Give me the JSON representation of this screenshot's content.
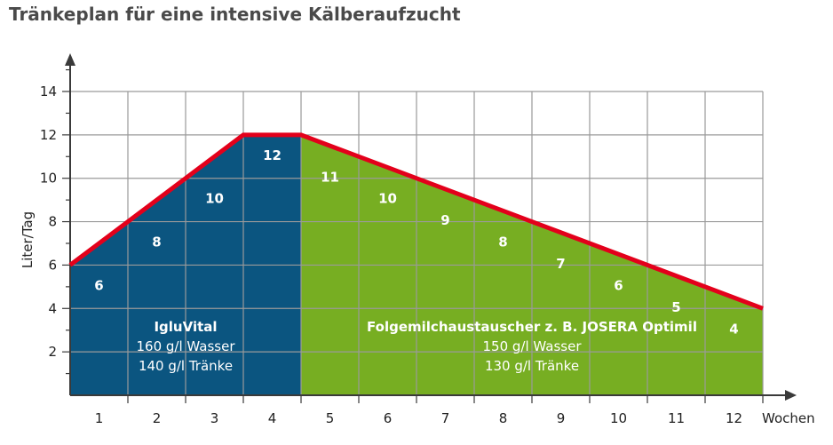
{
  "chart_data": {
    "type": "area",
    "title": "Tränkeplan für eine intensive Kälberaufzucht",
    "xlabel": "Wochen",
    "ylabel": "Liter/Tag",
    "xlim": [
      0,
      12
    ],
    "ylim": [
      0,
      14
    ],
    "x_ticks": [
      "1",
      "2",
      "3",
      "4",
      "5",
      "6",
      "7",
      "8",
      "9",
      "10",
      "11",
      "12"
    ],
    "y_ticks": [
      "2",
      "4",
      "6",
      "8",
      "10",
      "12",
      "14"
    ],
    "grid": true,
    "line": [
      [
        0,
        6
      ],
      [
        3,
        12
      ],
      [
        4,
        12
      ],
      [
        12,
        4
      ]
    ],
    "series": [
      {
        "color": "#0b5580",
        "x_range": [
          0,
          4
        ],
        "values": [
          6,
          8,
          10,
          12
        ],
        "label_lines": [
          "IgluVital",
          "160 g/l Wasser",
          "140 g/l Tränke"
        ]
      },
      {
        "color": "#77ae22",
        "x_range": [
          4,
          12
        ],
        "values": [
          11,
          10,
          9,
          8,
          7,
          6,
          5,
          4
        ],
        "label_lines": [
          "Folgemilchaustauscher z. B. JOSERA Optimil",
          "150 g/l Wasser",
          "130 g/l Tränke"
        ]
      }
    ],
    "line_color": "#e3001b"
  }
}
